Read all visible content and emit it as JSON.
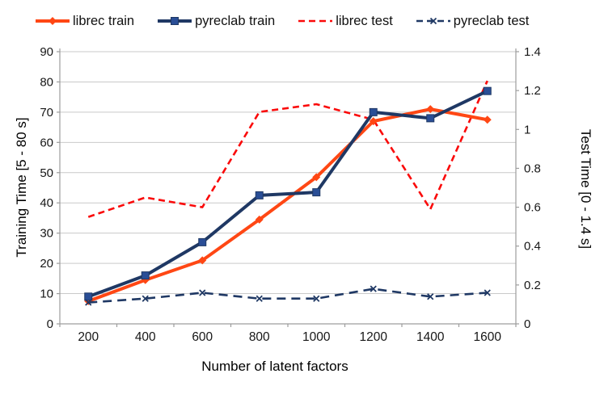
{
  "chart_data": {
    "type": "line",
    "title": "",
    "xlabel": "Number of latent factors",
    "ylabel_left": "Training Time [5 - 80 s]",
    "ylabel_right": "Test Time [0 - 1.4 s]",
    "x": [
      200,
      400,
      600,
      800,
      1000,
      1200,
      1400,
      1600
    ],
    "xtick_labels": [
      "200",
      "400",
      "600",
      "800",
      "1000",
      "1200",
      "1400",
      "1600"
    ],
    "ylim_left": [
      0,
      90
    ],
    "ylim_right": [
      0,
      1.4
    ],
    "yticks_left": [
      0,
      10,
      20,
      30,
      40,
      50,
      60,
      70,
      80,
      90
    ],
    "yticks_right": [
      "0",
      "0.2",
      "0.4",
      "0.6",
      "0.8",
      "1",
      "1.2",
      "1.4"
    ],
    "grid": true,
    "legend_position": "top",
    "series": [
      {
        "name": "librec test",
        "axis": "right",
        "style": "dashed",
        "marker": "none",
        "color": "#FA0A0A",
        "values": [
          0.55,
          0.65,
          0.6,
          1.09,
          1.13,
          1.05,
          0.59,
          1.25
        ]
      },
      {
        "name": "librec train",
        "axis": "left",
        "style": "solid",
        "marker": "diamond",
        "color": "#FF4714",
        "marker_fill": "#FF4714",
        "values": [
          7.5,
          14.5,
          21,
          34.5,
          48.5,
          67,
          71,
          67.5
        ]
      },
      {
        "name": "pyreclab train",
        "axis": "left",
        "style": "solid",
        "marker": "square",
        "color": "#1F3864",
        "marker_fill": "#2A4E96",
        "values": [
          9,
          16,
          27,
          42.5,
          43.5,
          70,
          68,
          77
        ]
      },
      {
        "name": "pyreclab test",
        "axis": "right",
        "style": "dashed",
        "marker": "x",
        "color": "#1F3864",
        "values": [
          0.11,
          0.13,
          0.16,
          0.13,
          0.13,
          0.18,
          0.14,
          0.16
        ]
      }
    ],
    "legend_order": [
      "librec train",
      "pyreclab train",
      "librec test",
      "pyreclab test"
    ],
    "colors": {
      "gridline": "#c9c9c9",
      "axis_line": "#9d9d9d",
      "tick_label": "#171717",
      "axis_title": "#000000"
    }
  }
}
